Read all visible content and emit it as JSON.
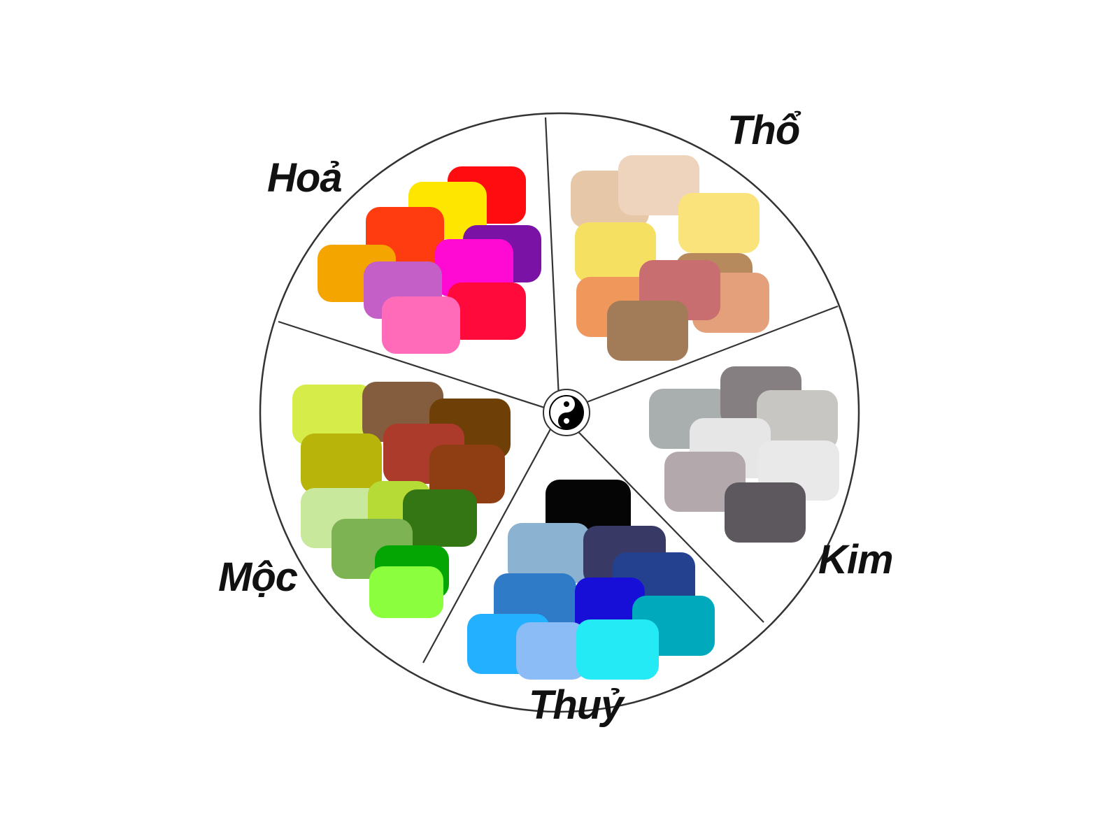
{
  "diagram": {
    "segments": [
      {
        "key": "hoa",
        "label": "Hoả",
        "swatch_colors": [
          "#ff0c10",
          "#ffe600",
          "#ff3c10",
          "#7a12a6",
          "#f5a500",
          "#ff0ad2",
          "#c45fc8",
          "#ff0a3a",
          "#ff6ab9"
        ]
      },
      {
        "key": "tho",
        "label": "Thổ",
        "swatch_colors": [
          "#e6c8a8",
          "#eed4bc",
          "#fbe37c",
          "#f5e062",
          "#b78a5e",
          "#f0985c",
          "#e4a07a",
          "#c96e70",
          "#a27b58"
        ]
      },
      {
        "key": "kim",
        "label": "Kim",
        "swatch_colors": [
          "#a9aeaf",
          "#857f82",
          "#c8c6c3",
          "#e6e6e6",
          "#e9e9e9",
          "#b3a9ad",
          "#5c585d"
        ]
      },
      {
        "key": "thuy",
        "label": "Thuỷ",
        "swatch_colors": [
          "#050505",
          "#8bb2d1",
          "#393966",
          "#24418f",
          "#2f7bc8",
          "#170ed8",
          "#00a9bc",
          "#23b0ff",
          "#8bbcf5",
          "#24eaf5"
        ]
      },
      {
        "key": "moc",
        "label": "Mộc",
        "swatch_colors": [
          "#d6ec48",
          "#845c3e",
          "#6f3f08",
          "#b9b409",
          "#ad3b2c",
          "#8e3e12",
          "#c8e89c",
          "#b6da36",
          "#357614",
          "#7db352",
          "#04a604",
          "#8bff3d"
        ]
      }
    ],
    "center_icon": "yin-yang-icon"
  }
}
